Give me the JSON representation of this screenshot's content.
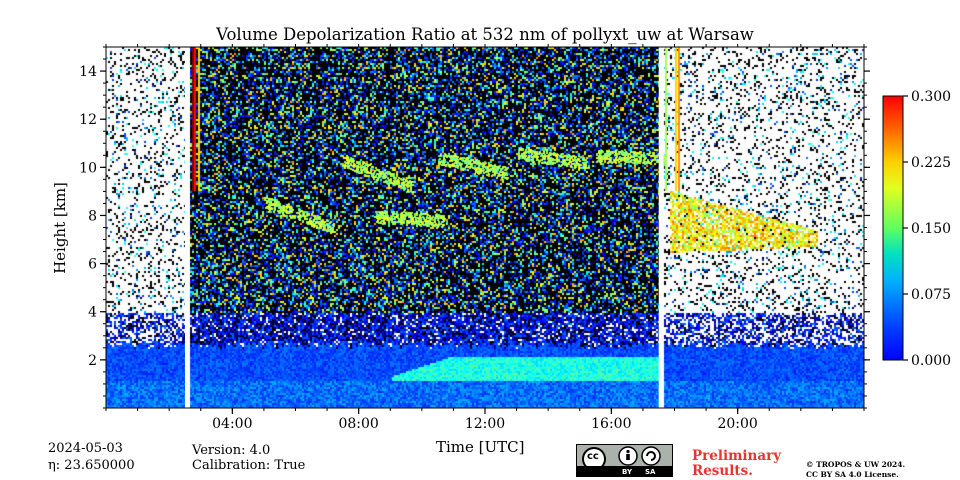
{
  "chart_data": {
    "type": "heatmap",
    "title": "Volume Depolarization Ratio at 532 nm of pollyxt_uw at Warsaw",
    "xlabel": "Time [UTC]",
    "ylabel": "Height [km]",
    "x_range_hours": [
      0,
      24
    ],
    "y_range_km": [
      0,
      15
    ],
    "x_ticks": [
      {
        "hour": 4,
        "label": "04:00"
      },
      {
        "hour": 8,
        "label": "08:00"
      },
      {
        "hour": 12,
        "label": "12:00"
      },
      {
        "hour": 16,
        "label": "16:00"
      },
      {
        "hour": 20,
        "label": "20:00"
      }
    ],
    "y_ticks": [
      {
        "km": 2,
        "label": "2"
      },
      {
        "km": 4,
        "label": "4"
      },
      {
        "km": 6,
        "label": "6"
      },
      {
        "km": 8,
        "label": "8"
      },
      {
        "km": 10,
        "label": "10"
      },
      {
        "km": 12,
        "label": "12"
      },
      {
        "km": 14,
        "label": "14"
      }
    ],
    "colorbar": {
      "min": 0.0,
      "max": 0.3,
      "ticks": [
        "0.000",
        "0.075",
        "0.150",
        "0.225",
        "0.300"
      ],
      "colormap": "jet"
    },
    "data_gaps_hours": [
      [
        2.5,
        2.65
      ],
      [
        17.5,
        17.65
      ]
    ],
    "features": [
      {
        "name": "boundary layer",
        "start_hour": 0,
        "end_hour": 24,
        "top_km": 2.5,
        "depol": 0.06
      },
      {
        "name": "enhanced layer",
        "start_hour": 9,
        "end_hour": 17.5,
        "top_km": 2.2,
        "depol": 0.12
      },
      {
        "name": "ice cloud",
        "start_hour": 17.8,
        "end_hour": 22.5,
        "base_km": 6.5,
        "top_km": 9,
        "depol": 0.19
      },
      {
        "name": "cirrus streaks",
        "start_hour": 4,
        "end_hour": 17.5,
        "base_km": 7,
        "top_km": 11,
        "depol": 0.15
      }
    ]
  },
  "meta": {
    "date": "2024-05-03",
    "eta_label": "η: 23.650000",
    "version": "Version: 4.0",
    "calibration": "Calibration: True"
  },
  "footer": {
    "preliminary_line1": "Preliminary",
    "preliminary_line2": "Results.",
    "copyright_line1": "© TROPOS & UW 2024.",
    "copyright_line2": "CC BY SA 4.0 License.",
    "license_by": "BY",
    "license_sa": "SA",
    "license_cc": "cc"
  }
}
